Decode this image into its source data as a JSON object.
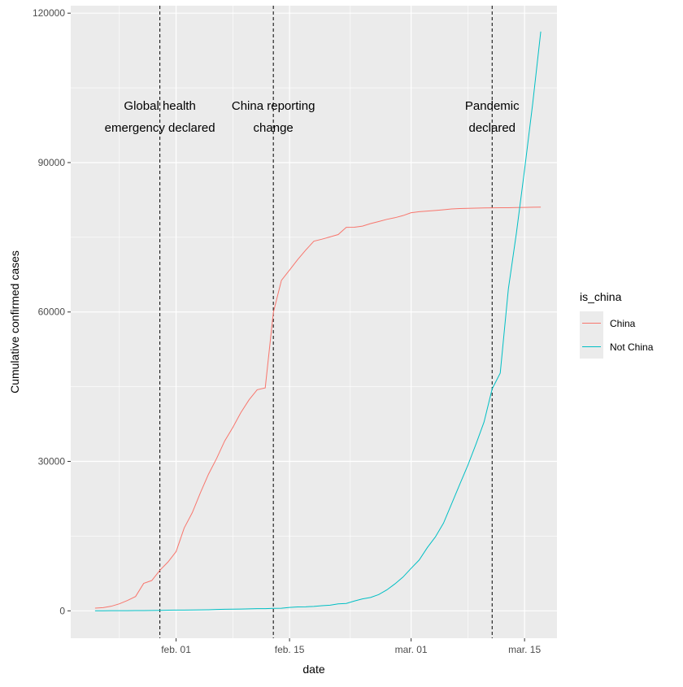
{
  "chart_data": {
    "type": "line",
    "xlabel": "date",
    "ylabel": "Cumulative confirmed cases",
    "x_range": [
      "2020-01-19",
      "2020-03-19"
    ],
    "ylim": [
      -5500,
      121500
    ],
    "y_ticks": [
      0,
      30000,
      60000,
      90000,
      120000
    ],
    "y_tick_labels": [
      "0",
      "30000",
      "60000",
      "90000",
      "120000"
    ],
    "x_ticks": [
      "2020-02-01",
      "2020-02-15",
      "2020-03-01",
      "2020-03-15"
    ],
    "x_tick_labels": [
      "feb. 01",
      "feb. 15",
      "mar. 01",
      "mar. 15"
    ],
    "grid": true,
    "legend": {
      "title": "is_china",
      "position": "right",
      "entries": [
        "China",
        "Not China"
      ]
    },
    "series": [
      {
        "name": "China",
        "color": "#F8766D",
        "points": [
          [
            "2020-01-22",
            548
          ],
          [
            "2020-01-23",
            643
          ],
          [
            "2020-01-24",
            920
          ],
          [
            "2020-01-25",
            1406
          ],
          [
            "2020-01-26",
            2075
          ],
          [
            "2020-01-27",
            2877
          ],
          [
            "2020-01-28",
            5509
          ],
          [
            "2020-01-29",
            6087
          ],
          [
            "2020-01-30",
            8141
          ],
          [
            "2020-01-31",
            9802
          ],
          [
            "2020-02-01",
            11891
          ],
          [
            "2020-02-02",
            16630
          ],
          [
            "2020-02-03",
            19716
          ],
          [
            "2020-02-04",
            23707
          ],
          [
            "2020-02-05",
            27440
          ],
          [
            "2020-02-06",
            30587
          ],
          [
            "2020-02-07",
            34110
          ],
          [
            "2020-02-08",
            36814
          ],
          [
            "2020-02-09",
            39829
          ],
          [
            "2020-02-10",
            42354
          ],
          [
            "2020-02-11",
            44386
          ],
          [
            "2020-02-12",
            44759
          ],
          [
            "2020-02-13",
            59895
          ],
          [
            "2020-02-14",
            66358
          ],
          [
            "2020-02-15",
            68413
          ],
          [
            "2020-02-16",
            70513
          ],
          [
            "2020-02-17",
            72434
          ],
          [
            "2020-02-18",
            74211
          ],
          [
            "2020-02-19",
            74619
          ],
          [
            "2020-02-20",
            75077
          ],
          [
            "2020-02-21",
            75550
          ],
          [
            "2020-02-22",
            77001
          ],
          [
            "2020-02-23",
            77022
          ],
          [
            "2020-02-24",
            77241
          ],
          [
            "2020-02-25",
            77754
          ],
          [
            "2020-02-26",
            78166
          ],
          [
            "2020-02-27",
            78600
          ],
          [
            "2020-02-28",
            78928
          ],
          [
            "2020-02-29",
            79356
          ],
          [
            "2020-03-01",
            79932
          ],
          [
            "2020-03-02",
            80136
          ],
          [
            "2020-03-03",
            80261
          ],
          [
            "2020-03-04",
            80386
          ],
          [
            "2020-03-05",
            80537
          ],
          [
            "2020-03-06",
            80690
          ],
          [
            "2020-03-07",
            80770
          ],
          [
            "2020-03-08",
            80823
          ],
          [
            "2020-03-09",
            80860
          ],
          [
            "2020-03-10",
            80887
          ],
          [
            "2020-03-11",
            80921
          ],
          [
            "2020-03-12",
            80932
          ],
          [
            "2020-03-13",
            80945
          ],
          [
            "2020-03-14",
            80977
          ],
          [
            "2020-03-15",
            81003
          ],
          [
            "2020-03-16",
            81033
          ],
          [
            "2020-03-17",
            81058
          ]
        ]
      },
      {
        "name": "Not China",
        "color": "#00BFC4",
        "points": [
          [
            "2020-01-22",
            7
          ],
          [
            "2020-01-23",
            11
          ],
          [
            "2020-01-24",
            20
          ],
          [
            "2020-01-25",
            26
          ],
          [
            "2020-01-26",
            36
          ],
          [
            "2020-01-27",
            50
          ],
          [
            "2020-01-28",
            58
          ],
          [
            "2020-01-29",
            78
          ],
          [
            "2020-01-30",
            94
          ],
          [
            "2020-01-31",
            130
          ],
          [
            "2020-02-01",
            151
          ],
          [
            "2020-02-02",
            159
          ],
          [
            "2020-02-03",
            180
          ],
          [
            "2020-02-04",
            191
          ],
          [
            "2020-02-05",
            216
          ],
          [
            "2020-02-06",
            271
          ],
          [
            "2020-02-07",
            307
          ],
          [
            "2020-02-08",
            330
          ],
          [
            "2020-02-09",
            362
          ],
          [
            "2020-02-10",
            394
          ],
          [
            "2020-02-11",
            441
          ],
          [
            "2020-02-12",
            446
          ],
          [
            "2020-02-13",
            505
          ],
          [
            "2020-02-14",
            526
          ],
          [
            "2020-02-15",
            683
          ],
          [
            "2020-02-16",
            794
          ],
          [
            "2020-02-17",
            804
          ],
          [
            "2020-02-18",
            896
          ],
          [
            "2020-02-19",
            1031
          ],
          [
            "2020-02-20",
            1137
          ],
          [
            "2020-02-21",
            1388
          ],
          [
            "2020-02-22",
            1485
          ],
          [
            "2020-02-23",
            1970
          ],
          [
            "2020-02-24",
            2395
          ],
          [
            "2020-02-25",
            2682
          ],
          [
            "2020-02-26",
            3261
          ],
          [
            "2020-02-27",
            4194
          ],
          [
            "2020-02-28",
            5405
          ],
          [
            "2020-02-29",
            6779
          ],
          [
            "2020-03-01",
            8528
          ],
          [
            "2020-03-02",
            10209
          ],
          [
            "2020-03-03",
            12688
          ],
          [
            "2020-03-04",
            14853
          ],
          [
            "2020-03-05",
            17614
          ],
          [
            "2020-03-06",
            21482
          ],
          [
            "2020-03-07",
            25378
          ],
          [
            "2020-03-08",
            29227
          ],
          [
            "2020-03-09",
            33436
          ],
          [
            "2020-03-10",
            37906
          ],
          [
            "2020-03-11",
            44557
          ],
          [
            "2020-03-12",
            47738
          ],
          [
            "2020-03-13",
            64596
          ],
          [
            "2020-03-14",
            75916
          ],
          [
            "2020-03-15",
            88542
          ],
          [
            "2020-03-16",
            101770
          ],
          [
            "2020-03-17",
            116302
          ]
        ]
      }
    ],
    "annotations": [
      {
        "date": "2020-01-30",
        "lines": [
          "Global health",
          "emergency declared"
        ]
      },
      {
        "date": "2020-02-13",
        "lines": [
          "China reporting",
          "change"
        ]
      },
      {
        "date": "2020-03-11",
        "lines": [
          "Pandemic",
          "declared"
        ]
      }
    ]
  }
}
